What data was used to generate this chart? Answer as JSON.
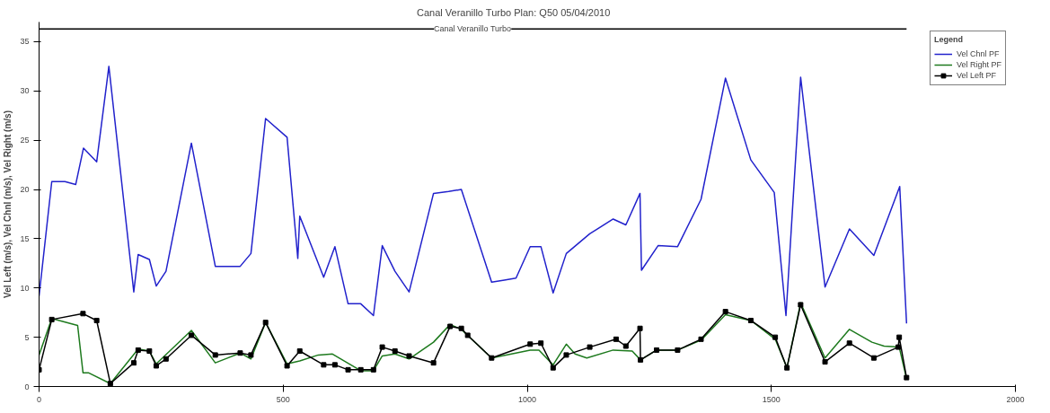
{
  "chart_data": {
    "type": "line",
    "title": "Canal Veranillo Turbo      Plan: Q50      05/04/2010",
    "ylabel": "Vel Left (m/s), Vel Chnl (m/s), Vel Right (m/s)",
    "legend_title": "Legend",
    "legend": "top right",
    "grid": false,
    "xlim": [
      0,
      2000
    ],
    "xticks": [
      0,
      500,
      1000,
      1500,
      2000
    ],
    "ylim": [
      0,
      37
    ],
    "yticks": [
      0,
      5,
      10,
      15,
      20,
      25,
      30,
      35
    ],
    "annotations": [
      {
        "text": "Canal Veranillo Turbo",
        "x": 888,
        "y": 36.3
      }
    ],
    "series": [
      {
        "color": "#000000",
        "marker": "none",
        "x": [
          0,
          1777
        ],
        "values": [
          36.3,
          36.3
        ]
      },
      {
        "name": "Vel Chnl PF",
        "color": "#2222cc",
        "marker": "none",
        "x": [
          0,
          26,
          53,
          75,
          91,
          118,
          143,
          194,
          203,
          226,
          240,
          260,
          312,
          361,
          412,
          434,
          464,
          508,
          530,
          534,
          583,
          606,
          633,
          659,
          685,
          703,
          729,
          758,
          808,
          839,
          865,
          927,
          953,
          977,
          1006,
          1028,
          1053,
          1080,
          1128,
          1176,
          1202,
          1231,
          1234,
          1268,
          1308,
          1356,
          1406,
          1458,
          1506,
          1530,
          1560,
          1610,
          1660,
          1710,
          1763,
          1777
        ],
        "values": [
          9.2,
          20.8,
          20.8,
          20.5,
          24.2,
          22.8,
          32.5,
          9.6,
          13.4,
          12.9,
          10.2,
          11.7,
          24.7,
          12.2,
          12.2,
          13.5,
          27.2,
          25.3,
          13.0,
          17.3,
          11.1,
          14.2,
          8.4,
          8.4,
          7.2,
          14.3,
          11.7,
          9.6,
          19.6,
          19.8,
          20.0,
          10.6,
          10.8,
          11.0,
          14.2,
          14.2,
          9.5,
          13.5,
          15.5,
          17.0,
          16.4,
          19.6,
          11.8,
          14.3,
          14.2,
          19.0,
          31.3,
          23.0,
          19.7,
          7.2,
          31.4,
          10.1,
          16.0,
          13.3,
          20.3,
          6.4
        ]
      },
      {
        "name": "Vel Right PF",
        "color": "#1e7a1e",
        "marker": "none",
        "x": [
          0,
          26,
          79,
          90,
          101,
          146,
          203,
          226,
          240,
          312,
          361,
          412,
          434,
          464,
          508,
          534,
          572,
          601,
          659,
          685,
          703,
          729,
          758,
          808,
          842,
          865,
          927,
          1006,
          1024,
          1053,
          1080,
          1098,
          1122,
          1176,
          1215,
          1232,
          1265,
          1308,
          1356,
          1406,
          1458,
          1508,
          1532,
          1560,
          1610,
          1660,
          1706,
          1731,
          1762,
          1777
        ],
        "values": [
          3.2,
          6.9,
          6.2,
          1.4,
          1.4,
          0.3,
          3.8,
          3.6,
          2.3,
          5.7,
          2.4,
          3.4,
          2.8,
          6.5,
          2.3,
          2.6,
          3.2,
          3.3,
          1.6,
          1.6,
          3.1,
          3.3,
          2.8,
          4.5,
          6.3,
          5.8,
          2.9,
          3.7,
          3.7,
          2.2,
          4.3,
          3.3,
          2.9,
          3.7,
          3.6,
          2.7,
          3.7,
          3.7,
          4.7,
          7.3,
          6.7,
          4.8,
          1.9,
          8.5,
          2.9,
          5.8,
          4.5,
          4.1,
          4.0,
          0.8
        ]
      },
      {
        "name": "Vel Left PF",
        "color": "#000000",
        "marker": "square",
        "x": [
          0,
          26,
          90,
          118,
          146,
          194,
          203,
          226,
          240,
          260,
          312,
          361,
          412,
          434,
          464,
          508,
          534,
          583,
          606,
          633,
          659,
          685,
          703,
          729,
          758,
          808,
          842,
          865,
          878,
          927,
          1006,
          1028,
          1053,
          1080,
          1128,
          1182,
          1202,
          1231,
          1232,
          1265,
          1308,
          1356,
          1406,
          1458,
          1508,
          1532,
          1560,
          1610,
          1660,
          1710,
          1760,
          1762,
          1777
        ],
        "values": [
          1.7,
          6.8,
          7.4,
          6.7,
          0.3,
          2.4,
          3.7,
          3.6,
          2.1,
          2.8,
          5.2,
          3.2,
          3.4,
          3.2,
          6.5,
          2.1,
          3.6,
          2.2,
          2.2,
          1.7,
          1.7,
          1.7,
          4.0,
          3.6,
          3.1,
          2.4,
          6.1,
          5.9,
          5.2,
          2.9,
          4.3,
          4.4,
          1.9,
          3.2,
          4.0,
          4.8,
          4.1,
          5.9,
          2.7,
          3.7,
          3.7,
          4.8,
          7.6,
          6.7,
          5.0,
          1.9,
          8.3,
          2.5,
          4.4,
          2.9,
          4.0,
          5.0,
          0.9
        ]
      }
    ]
  }
}
